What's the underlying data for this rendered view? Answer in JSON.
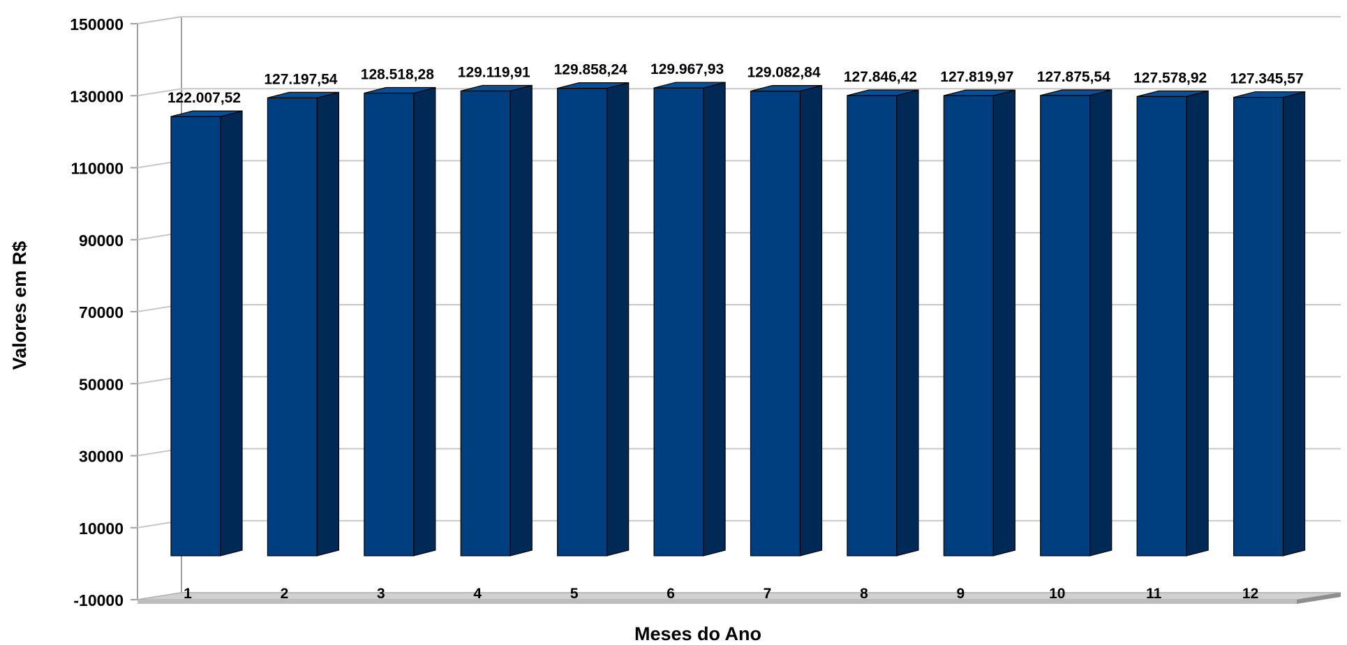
{
  "chart_data": {
    "type": "bar",
    "style": "3d-column",
    "title": "",
    "xlabel": "Meses do Ano",
    "ylabel": "Valores em R$",
    "ylim": [
      -10000,
      150000
    ],
    "yticks": [
      -10000,
      10000,
      30000,
      50000,
      70000,
      90000,
      110000,
      130000,
      150000
    ],
    "grid": true,
    "legend": "none",
    "categories": [
      "1",
      "2",
      "3",
      "4",
      "5",
      "6",
      "7",
      "8",
      "9",
      "10",
      "11",
      "12"
    ],
    "values": [
      122007.52,
      127197.54,
      128518.28,
      129119.91,
      129858.24,
      129967.93,
      129082.84,
      127846.42,
      127819.97,
      127875.54,
      127578.92,
      127345.57
    ],
    "data_labels": [
      "122.007,52",
      "127.197,54",
      "128.518,28",
      "129.119,91",
      "129.858,24",
      "129.967,93",
      "129.082,84",
      "127.846,42",
      "127.819,97",
      "127.875,54",
      "127.578,92",
      "127.345,57"
    ],
    "colors": {
      "bar_front": "#003F7F",
      "bar_side": "#002A55",
      "bar_top": "#0A4E96",
      "grid": "#C8C8C8",
      "floor": "#D0D0D0"
    }
  }
}
